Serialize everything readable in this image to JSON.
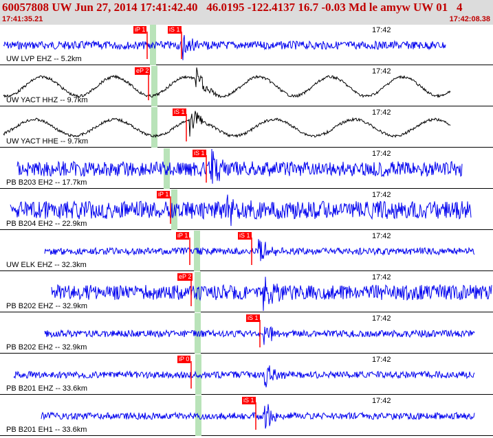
{
  "header": {
    "title": "60057808 UW Jun 27, 2014 17:41:42.40   46.0195 -122.4137 16.7 -0.03 Md le amyw UW 01   4",
    "start_time": "17:41:35.21",
    "end_time": "17:42:08.38"
  },
  "colors": {
    "header_text": "#c00000",
    "header_bg": "#dcdcdc",
    "trace_blue": "#0000ee",
    "trace_black": "#000000",
    "pick_red": "#ff0000",
    "phase_band": "#b9e3b9"
  },
  "panels": [
    {
      "label": "UW LVP EHZ -- 5.2km",
      "time": "17:42",
      "trace_color": "#0000ee",
      "amp": 6,
      "freq": 0.9,
      "start": 5,
      "end": 648,
      "band": 218,
      "arrival": 265,
      "picks": [
        {
          "text": "iP 1",
          "x": 194
        },
        {
          "text": "iS 1",
          "x": 244
        }
      ]
    },
    {
      "label": "UW YACT HHZ -- 9.7km",
      "time": "17:42",
      "trace_color": "#000000",
      "amp": 14,
      "freq": 0.1,
      "start": 5,
      "end": 655,
      "band": 220,
      "arrival": 285,
      "picks": [
        {
          "text": "eP 2",
          "x": 196
        }
      ]
    },
    {
      "label": "UW YACT HHE -- 9.7km",
      "time": "17:42",
      "trace_color": "#000000",
      "amp": 12,
      "freq": 0.09,
      "start": 5,
      "end": 655,
      "band": 220,
      "arrival": 276,
      "picks": [
        {
          "text": "iS 1",
          "x": 251
        }
      ]
    },
    {
      "label": "PB B203 EH2 -- 17.7km",
      "time": "17:42",
      "trace_color": "#0000ee",
      "amp": 11,
      "freq": 0.5,
      "start": 25,
      "end": 672,
      "band": 238,
      "arrival": 307,
      "picks": [
        {
          "text": "iS 1",
          "x": 280
        }
      ]
    },
    {
      "label": "PB B204 EH2 -- 22.9km",
      "time": "17:42",
      "trace_color": "#0000ee",
      "amp": 13,
      "freq": 0.5,
      "start": 15,
      "end": 685,
      "band": 249,
      "arrival": 330,
      "picks": [
        {
          "text": "iP 1",
          "x": 228
        }
      ]
    },
    {
      "label": "UW ELK EHZ -- 32.3km",
      "time": "17:42",
      "trace_color": "#0000ee",
      "amp": 5,
      "freq": 0.6,
      "start": 65,
      "end": 690,
      "band": 282,
      "arrival": 375,
      "picks": [
        {
          "text": "iP 1",
          "x": 256
        },
        {
          "text": "iS 1",
          "x": 346
        }
      ]
    },
    {
      "label": "PB B202 EHZ -- 32.9km",
      "time": "17:42",
      "trace_color": "#0000ee",
      "amp": 11,
      "freq": 0.4,
      "start": 75,
      "end": 715,
      "band": 283,
      "arrival": 383,
      "picks": [
        {
          "text": "eP 2",
          "x": 258
        }
      ]
    },
    {
      "label": "PB B202 EH2 -- 32.9km",
      "time": "17:42",
      "trace_color": "#0000ee",
      "amp": 5,
      "freq": 0.6,
      "start": 65,
      "end": 690,
      "band": 283,
      "arrival": 384,
      "picks": [
        {
          "text": "iS 1",
          "x": 358
        }
      ]
    },
    {
      "label": "PB B201 EHZ -- 33.6km",
      "time": "17:42",
      "trace_color": "#0000ee",
      "amp": 5,
      "freq": 0.6,
      "start": 20,
      "end": 690,
      "band": 284,
      "arrival": 385,
      "picks": [
        {
          "text": "iP 0",
          "x": 258
        }
      ]
    },
    {
      "label": "PB B201 EH1 -- 33.6km",
      "time": "17:42",
      "trace_color": "#0000ee",
      "amp": 5,
      "freq": 0.6,
      "start": 60,
      "end": 690,
      "band": 284,
      "arrival": 385,
      "picks": [
        {
          "text": "iS 1",
          "x": 352
        }
      ]
    }
  ]
}
